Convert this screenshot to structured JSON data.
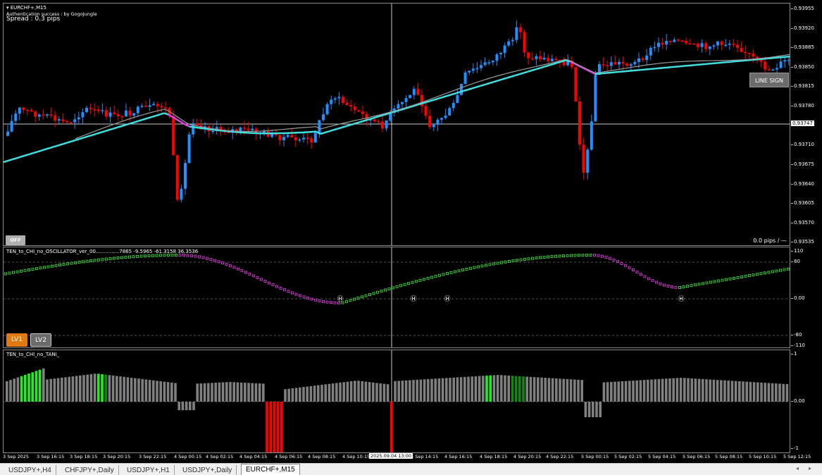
{
  "main": {
    "symbol_label": "▾ EURCHF+,M15",
    "auth_text": "Authentication success : by GogoJungle",
    "spread_text": "Spread : 0.3 pips",
    "off_button": "OFF",
    "line_sign_button": "LINE SIGN",
    "pips_readout": "0.0 pips / —",
    "price_labels": [
      "0.93955",
      "0.93920",
      "0.93885",
      "0.93850",
      "0.93815",
      "0.93780",
      "0.93710",
      "0.93675",
      "0.93640",
      "0.93605",
      "0.93570",
      "0.93535"
    ],
    "cursor_price": "0.93747",
    "colors": {
      "bull": "#1e90ff",
      "bear": "#ff0000",
      "ma_up": "#40e0e0",
      "ma_down": "#e040e0",
      "ma_slow": "#9a9a9a",
      "grid": "#ffffff"
    }
  },
  "osc": {
    "title": "TEN_to_CHI_no_OSCILLATOR_ver_00...............7865 -9.5965 -61.3158 36.3536",
    "lv1_button": "LV1",
    "lv2_button": "LV2",
    "labels": [
      "110",
      "80",
      "0.00",
      "-80",
      "-110"
    ],
    "marker_symbol": "Ⓗ",
    "colors": {
      "up": "#32c832",
      "down": "#c832c8"
    }
  },
  "tani": {
    "title": "TEN_to_CHI_no_TANI_",
    "labels": [
      "1",
      "0.00",
      "-1"
    ],
    "colors": {
      "neutral": "#808080",
      "bright_green": "#22ee22",
      "dark_green": "#118811",
      "red": "#ff0000"
    }
  },
  "time_axis": {
    "labels": [
      "3 Sep 2025",
      "3 Sep 16:15",
      "3 Sep 18:15",
      "3 Sep 20:15",
      "3 Sep 22:15",
      "4 Sep 00:15",
      "4 Sep 02:15",
      "4 Sep 04:15",
      "4 Sep 06:15",
      "4 Sep 08:15",
      "4 Sep 10:15",
      "4 Sep 14:15",
      "4 Sep 16:15",
      "4 Sep 18:15",
      "4 Sep 20:15",
      "4 Sep 22:15",
      "5 Sep 00:15",
      "5 Sep 02:15",
      "5 Sep 04:15",
      "5 Sep 06:15",
      "5 Sep 08:15",
      "5 Sep 10:15",
      "5 Sep 12:15"
    ],
    "cursor_time": "2025.09.04 13:00"
  },
  "tabs": [
    {
      "label": "USDJPY+,H4",
      "active": false
    },
    {
      "label": "CHFJPY+,Daily",
      "active": false
    },
    {
      "label": "USDJPY+,H1",
      "active": false
    },
    {
      "label": "USDJPY+,Daily",
      "active": false
    },
    {
      "label": "EURCHF+,M15",
      "active": true
    }
  ],
  "tab_scroll": {
    "left": "◂",
    "right": "▸"
  }
}
